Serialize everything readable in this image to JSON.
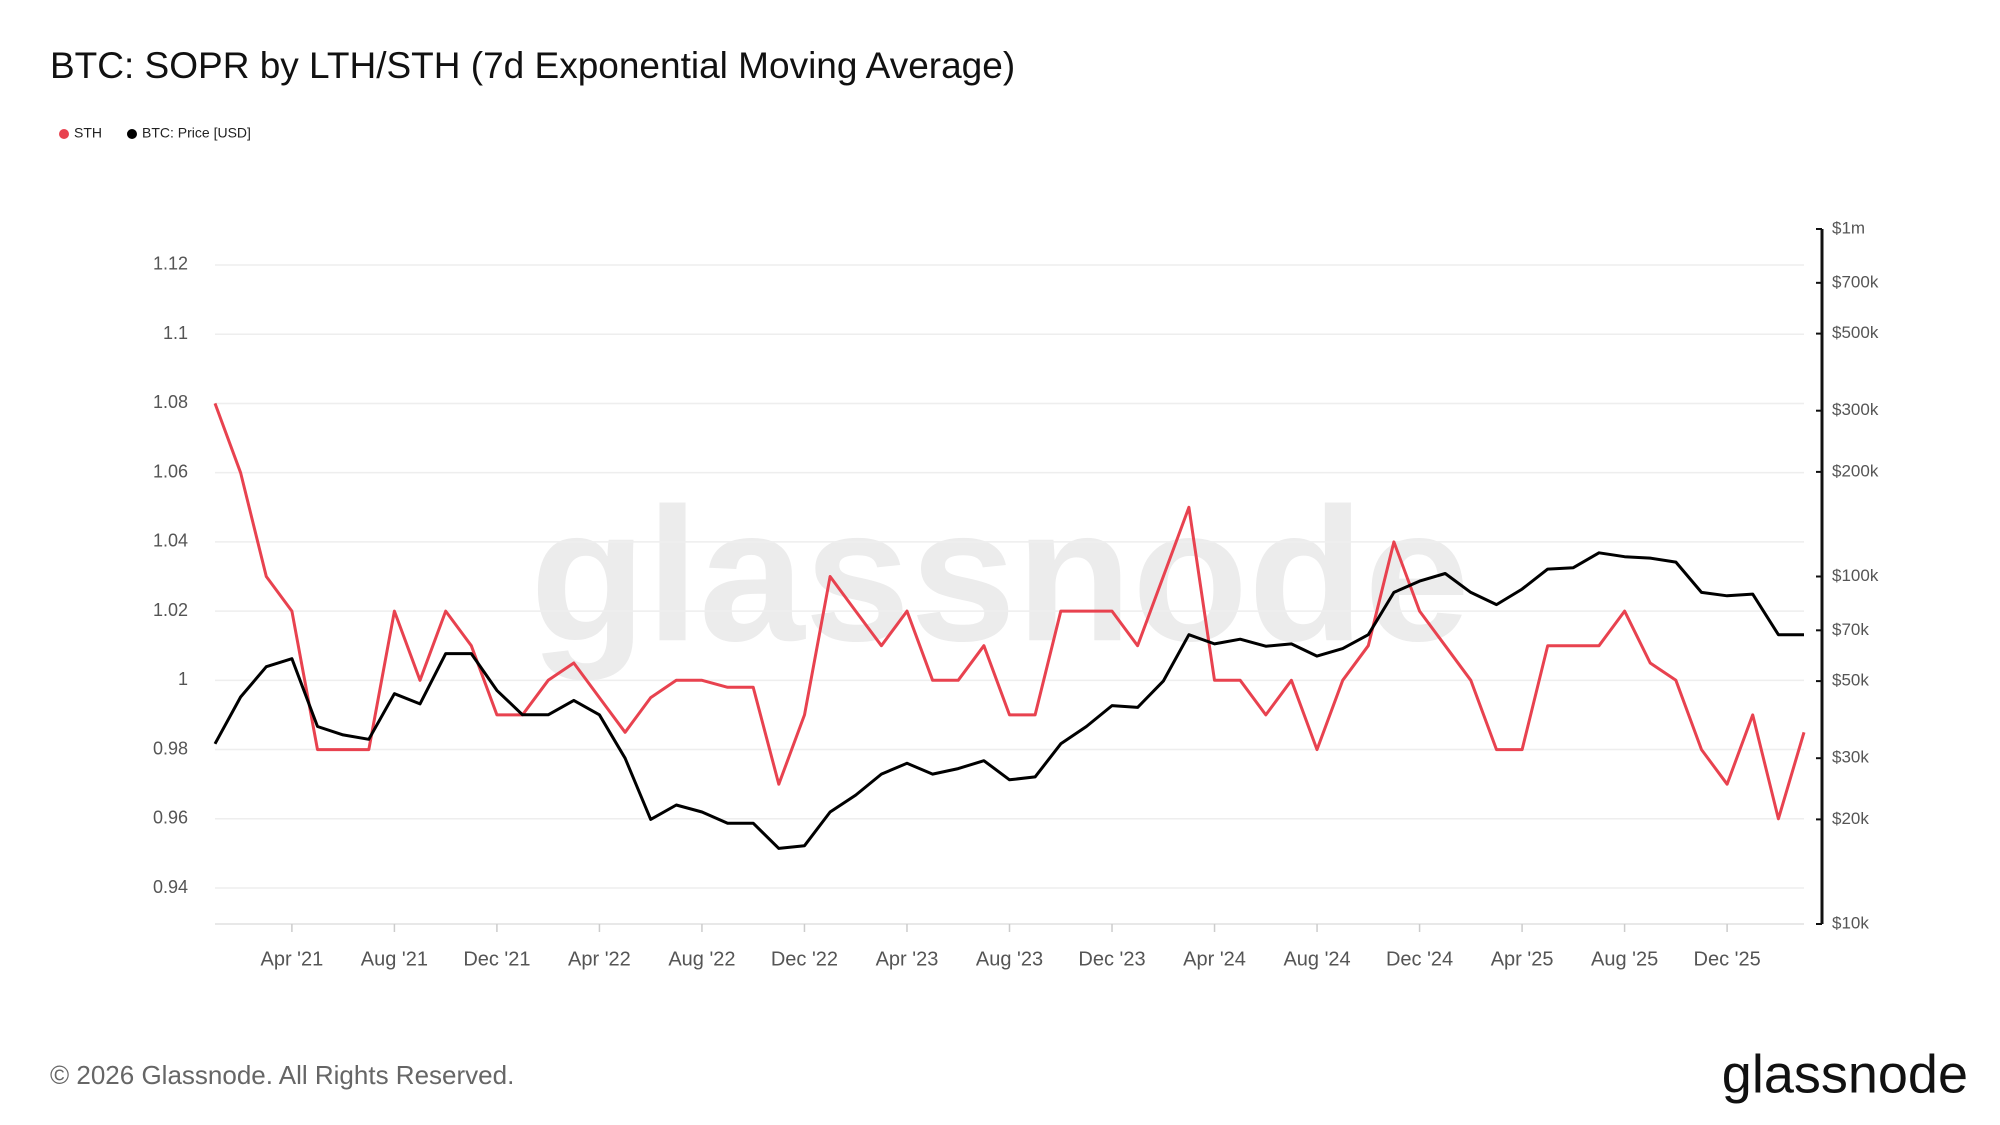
{
  "chart_data": {
    "type": "line",
    "title": "BTC: SOPR by LTH/STH (7d Exponential Moving Average)",
    "watermark": "glassnode",
    "footer": "© 2026 Glassnode. All Rights Reserved.",
    "logo": "glassnode",
    "grid": true,
    "legend": "top-left",
    "y2scale": "log",
    "x": [
      "2021-01",
      "2021-02",
      "2021-03",
      "2021-04",
      "2021-05",
      "2021-06",
      "2021-07",
      "2021-08",
      "2021-09",
      "2021-10",
      "2021-11",
      "2021-12",
      "2022-01",
      "2022-02",
      "2022-03",
      "2022-04",
      "2022-05",
      "2022-06",
      "2022-07",
      "2022-08",
      "2022-09",
      "2022-10",
      "2022-11",
      "2022-12",
      "2023-01",
      "2023-02",
      "2023-03",
      "2023-04",
      "2023-05",
      "2023-06",
      "2023-07",
      "2023-08",
      "2023-09",
      "2023-10",
      "2023-11",
      "2023-12",
      "2024-01",
      "2024-02",
      "2024-03",
      "2024-04",
      "2024-05",
      "2024-06",
      "2024-07",
      "2024-08",
      "2024-09",
      "2024-10",
      "2024-11",
      "2024-12",
      "2025-01",
      "2025-02",
      "2025-03",
      "2025-04",
      "2025-05",
      "2025-06",
      "2025-07",
      "2025-08",
      "2025-09",
      "2025-10",
      "2025-11",
      "2025-12",
      "2026-01",
      "2026-02",
      "2026-03"
    ],
    "xlim": [
      "2021-01",
      "2026-03"
    ],
    "xticks": [
      {
        "value": "2021-04",
        "label": "Apr '21"
      },
      {
        "value": "2021-08",
        "label": "Aug '21"
      },
      {
        "value": "2021-12",
        "label": "Dec '21"
      },
      {
        "value": "2022-04",
        "label": "Apr '22"
      },
      {
        "value": "2022-08",
        "label": "Aug '22"
      },
      {
        "value": "2022-12",
        "label": "Dec '22"
      },
      {
        "value": "2023-04",
        "label": "Apr '23"
      },
      {
        "value": "2023-08",
        "label": "Aug '23"
      },
      {
        "value": "2023-12",
        "label": "Dec '23"
      },
      {
        "value": "2024-04",
        "label": "Apr '24"
      },
      {
        "value": "2024-08",
        "label": "Aug '24"
      },
      {
        "value": "2024-12",
        "label": "Dec '24"
      },
      {
        "value": "2025-04",
        "label": "Apr '25"
      },
      {
        "value": "2025-08",
        "label": "Aug '25"
      },
      {
        "value": "2025-12",
        "label": "Dec '25"
      }
    ],
    "ylim": [
      0.9296,
      1.1304
    ],
    "yticks": [
      0.94,
      0.96,
      0.98,
      1,
      1.02,
      1.04,
      1.06,
      1.08,
      1.1,
      1.12
    ],
    "y2lim": [
      10000,
      1000000
    ],
    "y2ticks": [
      {
        "value": 10000,
        "label": "$10k"
      },
      {
        "value": 20000,
        "label": "$20k"
      },
      {
        "value": 30000,
        "label": "$30k"
      },
      {
        "value": 50000,
        "label": "$50k"
      },
      {
        "value": 70000,
        "label": "$70k"
      },
      {
        "value": 100000,
        "label": "$100k"
      },
      {
        "value": 200000,
        "label": "$200k"
      },
      {
        "value": 300000,
        "label": "$300k"
      },
      {
        "value": 500000,
        "label": "$500k"
      },
      {
        "value": 700000,
        "label": "$700k"
      },
      {
        "value": 1000000,
        "label": "$1m"
      }
    ],
    "series": [
      {
        "name": "STH",
        "color": "#e8424f",
        "values": [
          1.08,
          1.06,
          1.03,
          1.02,
          0.98,
          0.98,
          0.98,
          1.02,
          1.0,
          1.02,
          1.01,
          0.99,
          0.99,
          1.0,
          1.005,
          0.995,
          0.985,
          0.995,
          1.0,
          1.0,
          0.998,
          0.998,
          0.97,
          0.99,
          1.03,
          1.02,
          1.01,
          1.02,
          1.0,
          1.0,
          1.01,
          0.99,
          0.99,
          1.02,
          1.02,
          1.02,
          1.01,
          1.03,
          1.05,
          1.0,
          1.0,
          0.99,
          1.0,
          0.98,
          1.0,
          1.01,
          1.04,
          1.02,
          1.01,
          1.0,
          0.98,
          0.98,
          1.01,
          1.01,
          1.01,
          1.02,
          1.005,
          1.0,
          0.98,
          0.97,
          0.99,
          0.96,
          0.985
        ]
      },
      {
        "name": "BTC: Price [USD]",
        "color": "#000000",
        "axis": "y2",
        "values": [
          33000,
          45000,
          55000,
          58000,
          37000,
          35000,
          34000,
          46000,
          43000,
          60000,
          60000,
          47000,
          40000,
          40000,
          44000,
          40000,
          30000,
          20000,
          22000,
          21000,
          19500,
          19500,
          16500,
          16800,
          21000,
          23500,
          27000,
          29000,
          27000,
          28000,
          29500,
          26000,
          26500,
          33000,
          37000,
          42500,
          42000,
          50000,
          68000,
          64000,
          66000,
          63000,
          64000,
          59000,
          62000,
          68000,
          90000,
          97000,
          102000,
          90000,
          83000,
          92000,
          105000,
          106000,
          117000,
          114000,
          113000,
          110000,
          90000,
          88000,
          89000,
          68000,
          68000
        ]
      }
    ]
  }
}
